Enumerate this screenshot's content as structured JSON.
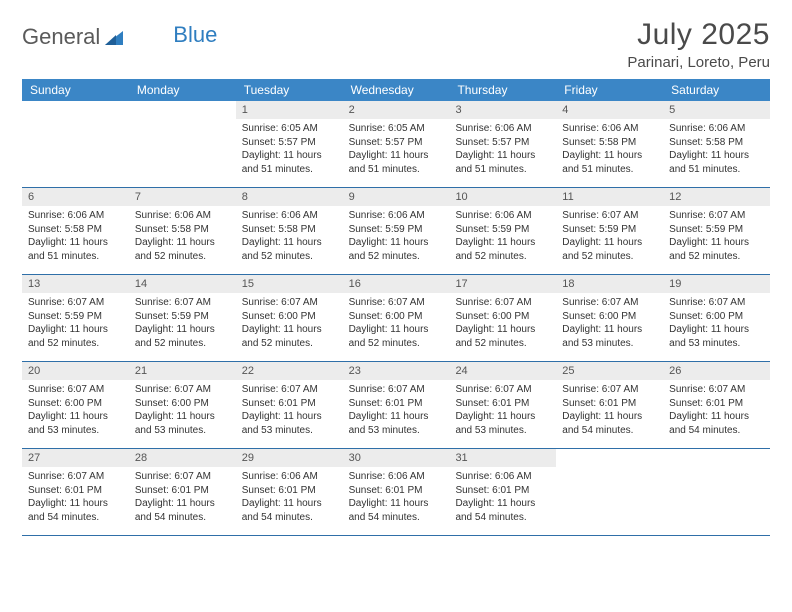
{
  "brand": {
    "part1": "General",
    "part2": "Blue"
  },
  "title": "July 2025",
  "location": "Parinari, Loreto, Peru",
  "colors": {
    "header_bg": "#3b86c6",
    "daynum_bg": "#ececec",
    "rule": "#2f6fa8",
    "text": "#333333",
    "title_text": "#4a4a4a"
  },
  "fonts": {
    "title_size": 30,
    "location_size": 15,
    "dow_size": 12,
    "daynum_size": 11,
    "body_size": 10
  },
  "days_of_week": [
    "Sunday",
    "Monday",
    "Tuesday",
    "Wednesday",
    "Thursday",
    "Friday",
    "Saturday"
  ],
  "weeks": [
    [
      null,
      null,
      {
        "n": "1",
        "sr": "6:05 AM",
        "ss": "5:57 PM",
        "dl": "11 hours and 51 minutes."
      },
      {
        "n": "2",
        "sr": "6:05 AM",
        "ss": "5:57 PM",
        "dl": "11 hours and 51 minutes."
      },
      {
        "n": "3",
        "sr": "6:06 AM",
        "ss": "5:57 PM",
        "dl": "11 hours and 51 minutes."
      },
      {
        "n": "4",
        "sr": "6:06 AM",
        "ss": "5:58 PM",
        "dl": "11 hours and 51 minutes."
      },
      {
        "n": "5",
        "sr": "6:06 AM",
        "ss": "5:58 PM",
        "dl": "11 hours and 51 minutes."
      }
    ],
    [
      {
        "n": "6",
        "sr": "6:06 AM",
        "ss": "5:58 PM",
        "dl": "11 hours and 51 minutes."
      },
      {
        "n": "7",
        "sr": "6:06 AM",
        "ss": "5:58 PM",
        "dl": "11 hours and 52 minutes."
      },
      {
        "n": "8",
        "sr": "6:06 AM",
        "ss": "5:58 PM",
        "dl": "11 hours and 52 minutes."
      },
      {
        "n": "9",
        "sr": "6:06 AM",
        "ss": "5:59 PM",
        "dl": "11 hours and 52 minutes."
      },
      {
        "n": "10",
        "sr": "6:06 AM",
        "ss": "5:59 PM",
        "dl": "11 hours and 52 minutes."
      },
      {
        "n": "11",
        "sr": "6:07 AM",
        "ss": "5:59 PM",
        "dl": "11 hours and 52 minutes."
      },
      {
        "n": "12",
        "sr": "6:07 AM",
        "ss": "5:59 PM",
        "dl": "11 hours and 52 minutes."
      }
    ],
    [
      {
        "n": "13",
        "sr": "6:07 AM",
        "ss": "5:59 PM",
        "dl": "11 hours and 52 minutes."
      },
      {
        "n": "14",
        "sr": "6:07 AM",
        "ss": "5:59 PM",
        "dl": "11 hours and 52 minutes."
      },
      {
        "n": "15",
        "sr": "6:07 AM",
        "ss": "6:00 PM",
        "dl": "11 hours and 52 minutes."
      },
      {
        "n": "16",
        "sr": "6:07 AM",
        "ss": "6:00 PM",
        "dl": "11 hours and 52 minutes."
      },
      {
        "n": "17",
        "sr": "6:07 AM",
        "ss": "6:00 PM",
        "dl": "11 hours and 52 minutes."
      },
      {
        "n": "18",
        "sr": "6:07 AM",
        "ss": "6:00 PM",
        "dl": "11 hours and 53 minutes."
      },
      {
        "n": "19",
        "sr": "6:07 AM",
        "ss": "6:00 PM",
        "dl": "11 hours and 53 minutes."
      }
    ],
    [
      {
        "n": "20",
        "sr": "6:07 AM",
        "ss": "6:00 PM",
        "dl": "11 hours and 53 minutes."
      },
      {
        "n": "21",
        "sr": "6:07 AM",
        "ss": "6:00 PM",
        "dl": "11 hours and 53 minutes."
      },
      {
        "n": "22",
        "sr": "6:07 AM",
        "ss": "6:01 PM",
        "dl": "11 hours and 53 minutes."
      },
      {
        "n": "23",
        "sr": "6:07 AM",
        "ss": "6:01 PM",
        "dl": "11 hours and 53 minutes."
      },
      {
        "n": "24",
        "sr": "6:07 AM",
        "ss": "6:01 PM",
        "dl": "11 hours and 53 minutes."
      },
      {
        "n": "25",
        "sr": "6:07 AM",
        "ss": "6:01 PM",
        "dl": "11 hours and 54 minutes."
      },
      {
        "n": "26",
        "sr": "6:07 AM",
        "ss": "6:01 PM",
        "dl": "11 hours and 54 minutes."
      }
    ],
    [
      {
        "n": "27",
        "sr": "6:07 AM",
        "ss": "6:01 PM",
        "dl": "11 hours and 54 minutes."
      },
      {
        "n": "28",
        "sr": "6:07 AM",
        "ss": "6:01 PM",
        "dl": "11 hours and 54 minutes."
      },
      {
        "n": "29",
        "sr": "6:06 AM",
        "ss": "6:01 PM",
        "dl": "11 hours and 54 minutes."
      },
      {
        "n": "30",
        "sr": "6:06 AM",
        "ss": "6:01 PM",
        "dl": "11 hours and 54 minutes."
      },
      {
        "n": "31",
        "sr": "6:06 AM",
        "ss": "6:01 PM",
        "dl": "11 hours and 54 minutes."
      },
      null,
      null
    ]
  ],
  "labels": {
    "sunrise": "Sunrise:",
    "sunset": "Sunset:",
    "daylight": "Daylight:"
  }
}
